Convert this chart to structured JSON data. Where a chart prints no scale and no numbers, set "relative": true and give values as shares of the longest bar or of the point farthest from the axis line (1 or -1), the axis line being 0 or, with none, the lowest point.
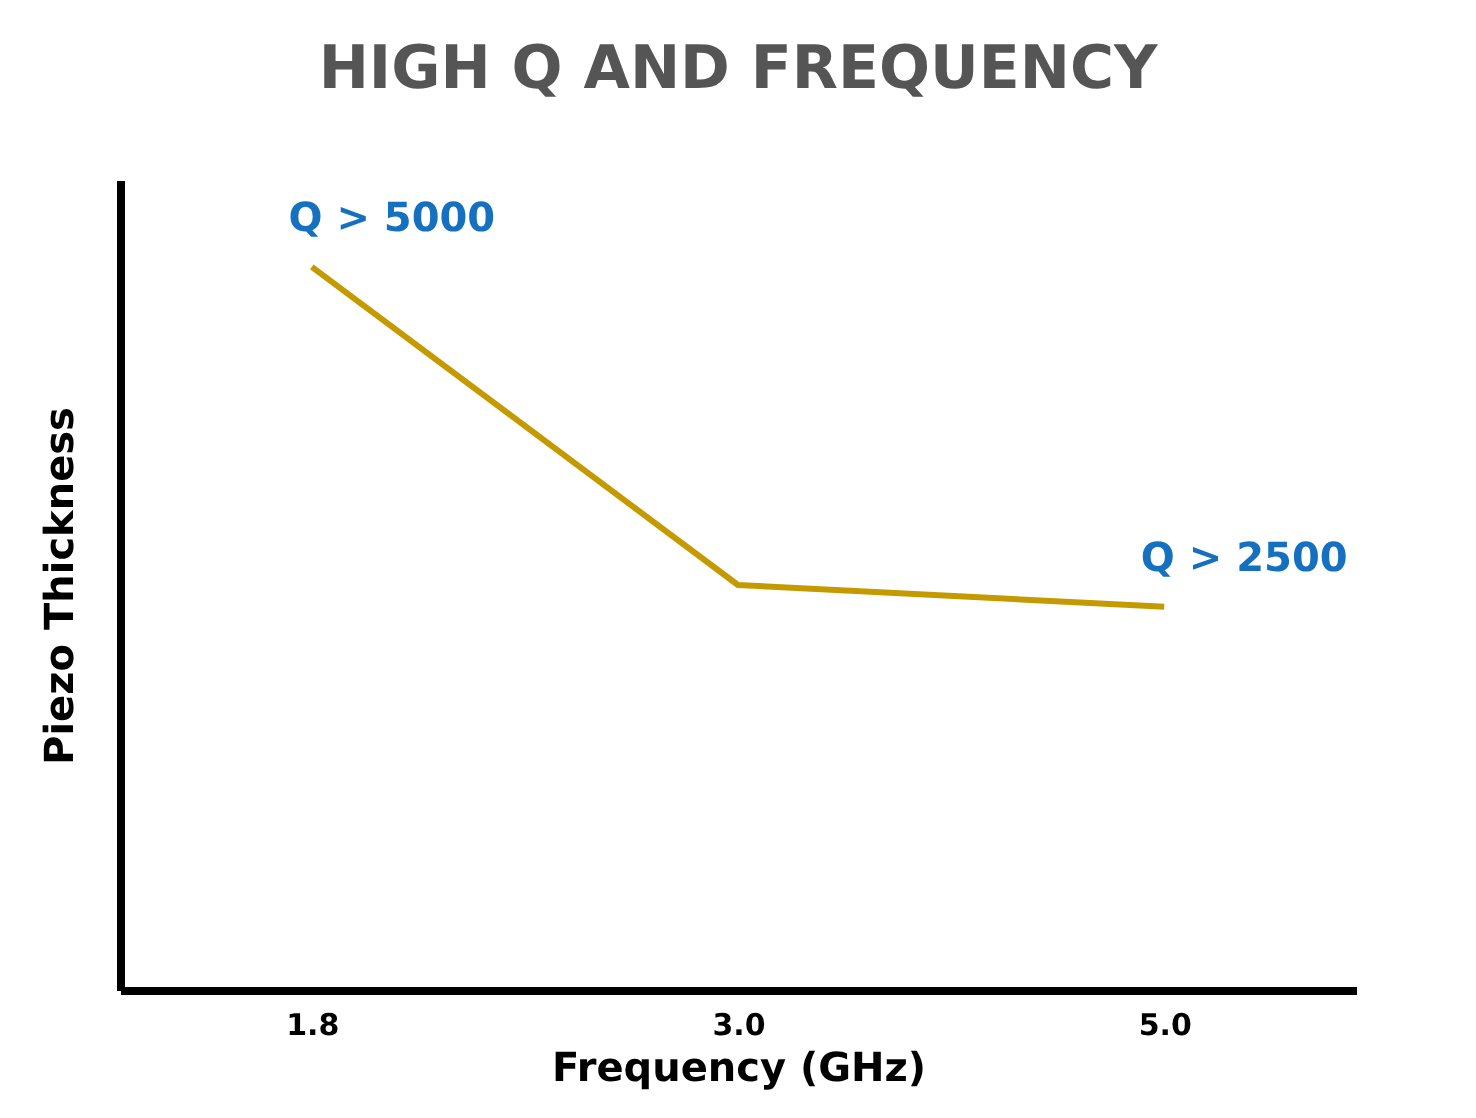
{
  "chart_data": {
    "type": "line",
    "title": "HIGH Q AND FREQUENCY",
    "xlabel": "Frequency (GHz)",
    "ylabel": "Piezo Thickness",
    "categories": [
      "1.8",
      "3.0",
      "5.0"
    ],
    "relative": true,
    "series": [
      {
        "color": "#c49a00",
        "values": [
          1,
          0.56,
          0.53
        ]
      }
    ],
    "annotations": [
      {
        "text": "Q > 5000",
        "x": "1.8",
        "y": 1
      },
      {
        "text": "Q > 2500",
        "x": "5.0",
        "y": 0.53
      }
    ],
    "marker": "none",
    "line_style": "solid"
  }
}
